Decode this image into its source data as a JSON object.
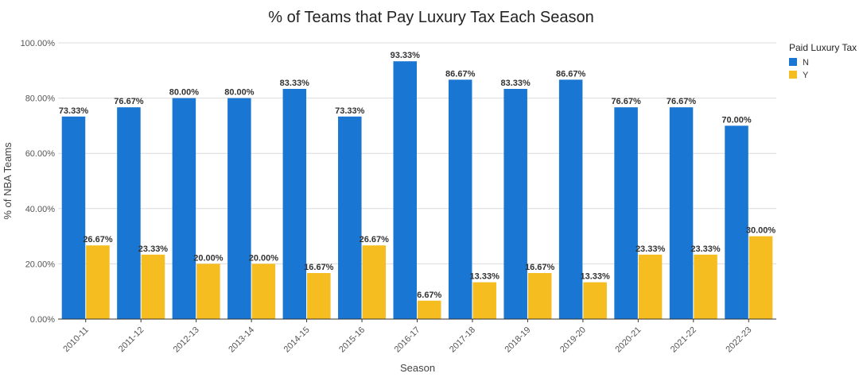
{
  "chart_data": {
    "type": "bar",
    "title": "% of Teams that Pay Luxury Tax Each Season",
    "xlabel": "Season",
    "ylabel": "% of NBA Teams",
    "ylim": [
      0,
      100
    ],
    "yticks": [
      "0.00%",
      "20.00%",
      "40.00%",
      "60.00%",
      "80.00%",
      "100.00%"
    ],
    "ytick_values": [
      0,
      20,
      40,
      60,
      80,
      100
    ],
    "grid": true,
    "legend_title": "Paid Luxury Tax",
    "legend_position": "top-right",
    "categories": [
      "2010-11",
      "2011-12",
      "2012-13",
      "2013-14",
      "2014-15",
      "2015-16",
      "2016-17",
      "2017-18",
      "2018-19",
      "2019-20",
      "2020-21",
      "2021-22",
      "2022-23"
    ],
    "series": [
      {
        "name": "N",
        "color": "#1976d2",
        "values": [
          73.33,
          76.67,
          80.0,
          80.0,
          83.33,
          73.33,
          93.33,
          86.67,
          83.33,
          86.67,
          76.67,
          76.67,
          70.0
        ],
        "labels": [
          "73.33%",
          "76.67%",
          "80.00%",
          "80.00%",
          "83.33%",
          "73.33%",
          "93.33%",
          "86.67%",
          "83.33%",
          "86.67%",
          "76.67%",
          "76.67%",
          "70.00%"
        ]
      },
      {
        "name": "Y",
        "color": "#f5bd1f",
        "values": [
          26.67,
          23.33,
          20.0,
          20.0,
          16.67,
          26.67,
          6.67,
          13.33,
          16.67,
          13.33,
          23.33,
          23.33,
          30.0
        ],
        "labels": [
          "26.67%",
          "23.33%",
          "20.00%",
          "20.00%",
          "16.67%",
          "26.67%",
          "6.67%",
          "13.33%",
          "16.67%",
          "13.33%",
          "23.33%",
          "23.33%",
          "30.00%"
        ]
      }
    ]
  }
}
